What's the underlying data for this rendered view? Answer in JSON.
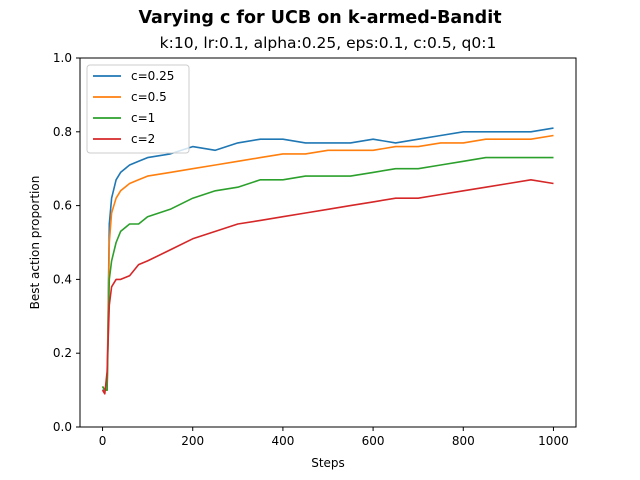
{
  "chart_data": {
    "type": "line",
    "title": "Varying c for UCB on k-armed-Bandit",
    "subtitle": "k:10, lr:0.1, alpha:0.25, eps:0.1, c:0.5, q0:1",
    "xlabel": "Steps",
    "ylabel": "Best action proportion",
    "xlim": [
      -50,
      1050
    ],
    "ylim": [
      0.0,
      1.0
    ],
    "xticks": [
      0,
      200,
      400,
      600,
      800,
      1000
    ],
    "yticks": [
      0.0,
      0.2,
      0.4,
      0.6,
      0.8,
      1.0
    ],
    "xtick_labels": [
      "0",
      "200",
      "400",
      "600",
      "800",
      "1000"
    ],
    "ytick_labels": [
      "0.0",
      "0.2",
      "0.4",
      "0.6",
      "0.8",
      "1.0"
    ],
    "grid": false,
    "legend_position": "top-left",
    "x": [
      0,
      5,
      10,
      15,
      20,
      30,
      40,
      60,
      80,
      100,
      150,
      200,
      250,
      300,
      350,
      400,
      450,
      500,
      550,
      600,
      650,
      700,
      750,
      800,
      850,
      900,
      950,
      1000
    ],
    "series": [
      {
        "name": "c=0.25",
        "color": "#1f77b4",
        "values": [
          0.1,
          0.1,
          0.1,
          0.55,
          0.62,
          0.67,
          0.69,
          0.71,
          0.72,
          0.73,
          0.74,
          0.76,
          0.75,
          0.77,
          0.78,
          0.78,
          0.77,
          0.77,
          0.77,
          0.78,
          0.77,
          0.78,
          0.79,
          0.8,
          0.8,
          0.8,
          0.8,
          0.81
        ]
      },
      {
        "name": "c=0.5",
        "color": "#ff7f0e",
        "values": [
          0.11,
          0.1,
          0.1,
          0.5,
          0.58,
          0.62,
          0.64,
          0.66,
          0.67,
          0.68,
          0.69,
          0.7,
          0.71,
          0.72,
          0.73,
          0.74,
          0.74,
          0.75,
          0.75,
          0.75,
          0.76,
          0.76,
          0.77,
          0.77,
          0.78,
          0.78,
          0.78,
          0.79
        ]
      },
      {
        "name": "c=1",
        "color": "#2ca02c",
        "values": [
          0.11,
          0.1,
          0.1,
          0.4,
          0.45,
          0.5,
          0.53,
          0.55,
          0.55,
          0.57,
          0.59,
          0.62,
          0.64,
          0.65,
          0.67,
          0.67,
          0.68,
          0.68,
          0.68,
          0.69,
          0.7,
          0.7,
          0.71,
          0.72,
          0.73,
          0.73,
          0.73,
          0.73
        ]
      },
      {
        "name": "c=2",
        "color": "#d62728",
        "values": [
          0.1,
          0.09,
          0.15,
          0.33,
          0.38,
          0.4,
          0.4,
          0.41,
          0.44,
          0.45,
          0.48,
          0.51,
          0.53,
          0.55,
          0.56,
          0.57,
          0.58,
          0.59,
          0.6,
          0.61,
          0.62,
          0.62,
          0.63,
          0.64,
          0.65,
          0.66,
          0.67,
          0.66
        ]
      }
    ]
  }
}
